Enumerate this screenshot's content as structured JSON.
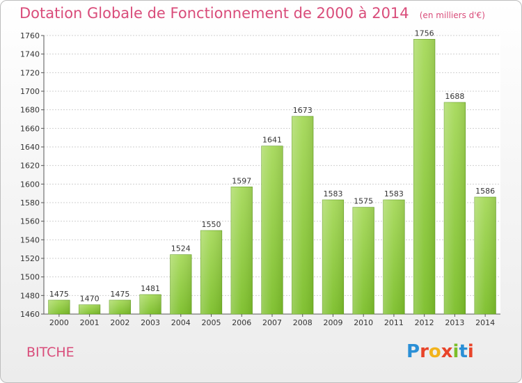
{
  "header": {
    "title": "Dotation Globale de Fonctionnement de 2000 à 2014",
    "unit": "(en milliers d'€)"
  },
  "footer": {
    "city": "BITCHE",
    "logo_text": "Proxiti"
  },
  "colors": {
    "bar": "#7cbf2a",
    "bar_light": "#a6d95a",
    "title": "#d94c7a",
    "grid": "#cfcfcf"
  },
  "chart_data": {
    "type": "bar",
    "title": "Dotation Globale de Fonctionnement de 2000 à 2014",
    "subtitle": "(en milliers d'€)",
    "xlabel": "",
    "ylabel": "",
    "categories": [
      "2000",
      "2001",
      "2002",
      "2003",
      "2004",
      "2005",
      "2006",
      "2007",
      "2008",
      "2009",
      "2010",
      "2011",
      "2012",
      "2013",
      "2014"
    ],
    "values": [
      1475,
      1470,
      1475,
      1481,
      1524,
      1550,
      1597,
      1641,
      1673,
      1583,
      1575,
      1583,
      1756,
      1688,
      1586
    ],
    "ylim": [
      1460,
      1760
    ],
    "yticks": [
      1460,
      1480,
      1500,
      1520,
      1540,
      1560,
      1580,
      1600,
      1620,
      1640,
      1660,
      1680,
      1700,
      1720,
      1740,
      1760
    ],
    "grid": true,
    "legend": "none"
  }
}
